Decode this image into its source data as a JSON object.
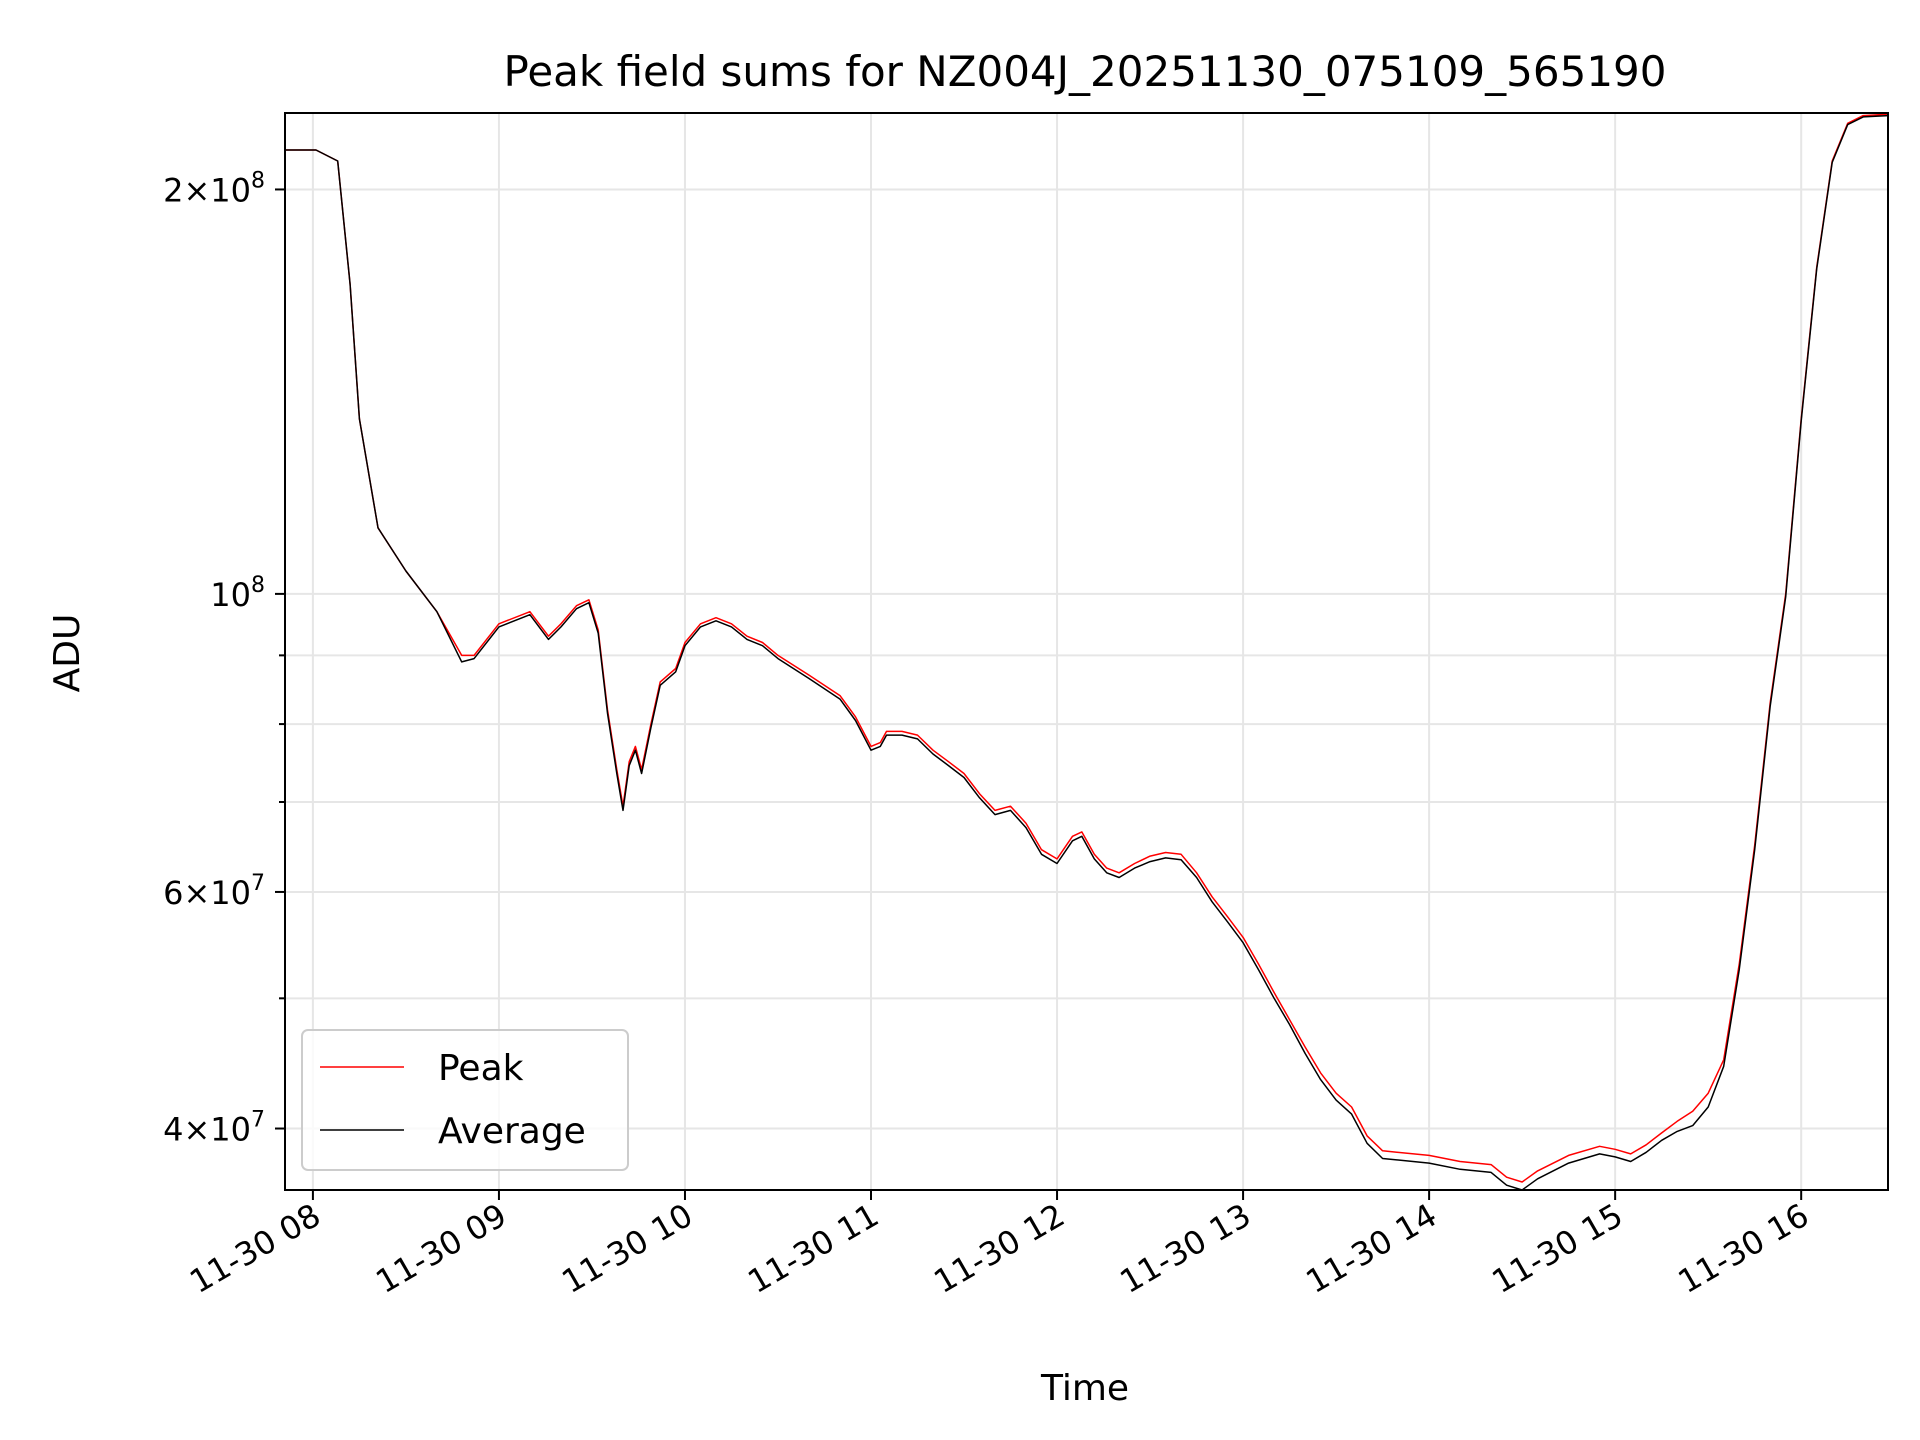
{
  "chart_data": {
    "type": "line",
    "title": "Peak field sums for NZ004J_20251130_075109_565190",
    "xlabel": "Time",
    "ylabel": "ADU",
    "yscale": "log",
    "grid": true,
    "legend_position": "lower-left",
    "xlim": [
      "2025-11-30 07:51",
      "2025-11-30 16:28"
    ],
    "ylim": [
      36000000,
      228000000
    ],
    "x_ticks": [
      {
        "value": "2025-11-30 08:00",
        "label": "11-30 08"
      },
      {
        "value": "2025-11-30 09:00",
        "label": "11-30 09"
      },
      {
        "value": "2025-11-30 10:00",
        "label": "11-30 10"
      },
      {
        "value": "2025-11-30 11:00",
        "label": "11-30 11"
      },
      {
        "value": "2025-11-30 12:00",
        "label": "11-30 12"
      },
      {
        "value": "2025-11-30 13:00",
        "label": "11-30 13"
      },
      {
        "value": "2025-11-30 14:00",
        "label": "11-30 14"
      },
      {
        "value": "2025-11-30 15:00",
        "label": "11-30 15"
      },
      {
        "value": "2025-11-30 16:00",
        "label": "11-30 16"
      }
    ],
    "y_major_ticks": [
      {
        "value": 40000000,
        "mant": "4",
        "exp": "7"
      },
      {
        "value": 60000000,
        "mant": "6",
        "exp": "7"
      },
      {
        "value": 100000000,
        "mant": "",
        "exp": "8"
      },
      {
        "value": 200000000,
        "mant": "2",
        "exp": "8"
      }
    ],
    "y_minor_ticks": [
      50000000,
      70000000,
      80000000,
      90000000
    ],
    "series": [
      {
        "name": "Peak",
        "color": "#ff0000",
        "points": [
          [
            "2025-11-30 07:51",
            214000000
          ],
          [
            "2025-11-30 08:01",
            214000000
          ],
          [
            "2025-11-30 08:08",
            210000000
          ],
          [
            "2025-11-30 08:12",
            170000000
          ],
          [
            "2025-11-30 08:15",
            135000000
          ],
          [
            "2025-11-30 08:21",
            112000000
          ],
          [
            "2025-11-30 08:30",
            104000000
          ],
          [
            "2025-11-30 08:40",
            97000000
          ],
          [
            "2025-11-30 08:48",
            90000000
          ],
          [
            "2025-11-30 08:52",
            90000000
          ],
          [
            "2025-11-30 09:00",
            95000000
          ],
          [
            "2025-11-30 09:10",
            97000000
          ],
          [
            "2025-11-30 09:16",
            93000000
          ],
          [
            "2025-11-30 09:20",
            95000000
          ],
          [
            "2025-11-30 09:25",
            98000000
          ],
          [
            "2025-11-30 09:29",
            99000000
          ],
          [
            "2025-11-30 09:32",
            94000000
          ],
          [
            "2025-11-30 09:35",
            82000000
          ],
          [
            "2025-11-30 09:38",
            74000000
          ],
          [
            "2025-11-30 09:40",
            69500000
          ],
          [
            "2025-11-30 09:42",
            75000000
          ],
          [
            "2025-11-30 09:44",
            77000000
          ],
          [
            "2025-11-30 09:46",
            74000000
          ],
          [
            "2025-11-30 09:49",
            80000000
          ],
          [
            "2025-11-30 09:52",
            86000000
          ],
          [
            "2025-11-30 09:57",
            88000000
          ],
          [
            "2025-11-30 10:00",
            92000000
          ],
          [
            "2025-11-30 10:05",
            95000000
          ],
          [
            "2025-11-30 10:10",
            96000000
          ],
          [
            "2025-11-30 10:15",
            95000000
          ],
          [
            "2025-11-30 10:20",
            93000000
          ],
          [
            "2025-11-30 10:25",
            92000000
          ],
          [
            "2025-11-30 10:30",
            90000000
          ],
          [
            "2025-11-30 10:40",
            87000000
          ],
          [
            "2025-11-30 10:50",
            84000000
          ],
          [
            "2025-11-30 10:55",
            81000000
          ],
          [
            "2025-11-30 11:00",
            77000000
          ],
          [
            "2025-11-30 11:03",
            77500000
          ],
          [
            "2025-11-30 11:05",
            79000000
          ],
          [
            "2025-11-30 11:10",
            79000000
          ],
          [
            "2025-11-30 11:15",
            78500000
          ],
          [
            "2025-11-30 11:20",
            76500000
          ],
          [
            "2025-11-30 11:25",
            75000000
          ],
          [
            "2025-11-30 11:30",
            73500000
          ],
          [
            "2025-11-30 11:35",
            71000000
          ],
          [
            "2025-11-30 11:40",
            69000000
          ],
          [
            "2025-11-30 11:45",
            69500000
          ],
          [
            "2025-11-30 11:50",
            67500000
          ],
          [
            "2025-11-30 11:55",
            64500000
          ],
          [
            "2025-11-30 12:00",
            63500000
          ],
          [
            "2025-11-30 12:05",
            66000000
          ],
          [
            "2025-11-30 12:08",
            66500000
          ],
          [
            "2025-11-30 12:12",
            64000000
          ],
          [
            "2025-11-30 12:16",
            62500000
          ],
          [
            "2025-11-30 12:20",
            62000000
          ],
          [
            "2025-11-30 12:25",
            63000000
          ],
          [
            "2025-11-30 12:30",
            63800000
          ],
          [
            "2025-11-30 12:35",
            64200000
          ],
          [
            "2025-11-30 12:40",
            64000000
          ],
          [
            "2025-11-30 12:45",
            62000000
          ],
          [
            "2025-11-30 12:50",
            59500000
          ],
          [
            "2025-11-30 12:55",
            57500000
          ],
          [
            "2025-11-30 13:00",
            55500000
          ],
          [
            "2025-11-30 13:05",
            53000000
          ],
          [
            "2025-11-30 13:10",
            50500000
          ],
          [
            "2025-11-30 13:15",
            48200000
          ],
          [
            "2025-11-30 13:20",
            46000000
          ],
          [
            "2025-11-30 13:25",
            44000000
          ],
          [
            "2025-11-30 13:30",
            42500000
          ],
          [
            "2025-11-30 13:35",
            41500000
          ],
          [
            "2025-11-30 13:40",
            39500000
          ],
          [
            "2025-11-30 13:45",
            38500000
          ],
          [
            "2025-11-30 14:00",
            38200000
          ],
          [
            "2025-11-30 14:10",
            37800000
          ],
          [
            "2025-11-30 14:20",
            37600000
          ],
          [
            "2025-11-30 14:25",
            36800000
          ],
          [
            "2025-11-30 14:30",
            36500000
          ],
          [
            "2025-11-30 14:35",
            37200000
          ],
          [
            "2025-11-30 14:45",
            38200000
          ],
          [
            "2025-11-30 14:55",
            38800000
          ],
          [
            "2025-11-30 15:00",
            38600000
          ],
          [
            "2025-11-30 15:05",
            38300000
          ],
          [
            "2025-11-30 15:10",
            38900000
          ],
          [
            "2025-11-30 15:15",
            39700000
          ],
          [
            "2025-11-30 15:20",
            40500000
          ],
          [
            "2025-11-30 15:25",
            41200000
          ],
          [
            "2025-11-30 15:30",
            42500000
          ],
          [
            "2025-11-30 15:35",
            45000000
          ],
          [
            "2025-11-30 15:40",
            53000000
          ],
          [
            "2025-11-30 15:45",
            65000000
          ],
          [
            "2025-11-30 15:50",
            83000000
          ],
          [
            "2025-11-30 15:55",
            100000000
          ],
          [
            "2025-11-30 16:00",
            135000000
          ],
          [
            "2025-11-30 16:05",
            175000000
          ],
          [
            "2025-11-30 16:10",
            210000000
          ],
          [
            "2025-11-30 16:15",
            224000000
          ],
          [
            "2025-11-30 16:20",
            227000000
          ],
          [
            "2025-11-30 16:28",
            227500000
          ]
        ]
      },
      {
        "name": "Average",
        "color": "#000000",
        "points": [
          [
            "2025-11-30 07:51",
            214000000
          ],
          [
            "2025-11-30 08:01",
            214000000
          ],
          [
            "2025-11-30 08:08",
            210000000
          ],
          [
            "2025-11-30 08:12",
            170000000
          ],
          [
            "2025-11-30 08:15",
            135000000
          ],
          [
            "2025-11-30 08:21",
            112000000
          ],
          [
            "2025-11-30 08:30",
            104000000
          ],
          [
            "2025-11-30 08:40",
            97000000
          ],
          [
            "2025-11-30 08:48",
            89000000
          ],
          [
            "2025-11-30 08:52",
            89500000
          ],
          [
            "2025-11-30 09:00",
            94500000
          ],
          [
            "2025-11-30 09:10",
            96500000
          ],
          [
            "2025-11-30 09:16",
            92500000
          ],
          [
            "2025-11-30 09:20",
            94500000
          ],
          [
            "2025-11-30 09:25",
            97500000
          ],
          [
            "2025-11-30 09:29",
            98500000
          ],
          [
            "2025-11-30 09:32",
            93500000
          ],
          [
            "2025-11-30 09:35",
            81500000
          ],
          [
            "2025-11-30 09:38",
            73500000
          ],
          [
            "2025-11-30 09:40",
            69000000
          ],
          [
            "2025-11-30 09:42",
            74500000
          ],
          [
            "2025-11-30 09:44",
            76500000
          ],
          [
            "2025-11-30 09:46",
            73500000
          ],
          [
            "2025-11-30 09:49",
            79500000
          ],
          [
            "2025-11-30 09:52",
            85500000
          ],
          [
            "2025-11-30 09:57",
            87500000
          ],
          [
            "2025-11-30 10:00",
            91500000
          ],
          [
            "2025-11-30 10:05",
            94500000
          ],
          [
            "2025-11-30 10:10",
            95500000
          ],
          [
            "2025-11-30 10:15",
            94500000
          ],
          [
            "2025-11-30 10:20",
            92500000
          ],
          [
            "2025-11-30 10:25",
            91500000
          ],
          [
            "2025-11-30 10:30",
            89500000
          ],
          [
            "2025-11-30 10:40",
            86500000
          ],
          [
            "2025-11-30 10:50",
            83500000
          ],
          [
            "2025-11-30 10:55",
            80500000
          ],
          [
            "2025-11-30 11:00",
            76500000
          ],
          [
            "2025-11-30 11:03",
            77000000
          ],
          [
            "2025-11-30 11:05",
            78500000
          ],
          [
            "2025-11-30 11:10",
            78500000
          ],
          [
            "2025-11-30 11:15",
            78000000
          ],
          [
            "2025-11-30 11:20",
            76000000
          ],
          [
            "2025-11-30 11:25",
            74500000
          ],
          [
            "2025-11-30 11:30",
            73000000
          ],
          [
            "2025-11-30 11:35",
            70500000
          ],
          [
            "2025-11-30 11:40",
            68500000
          ],
          [
            "2025-11-30 11:45",
            69000000
          ],
          [
            "2025-11-30 11:50",
            67000000
          ],
          [
            "2025-11-30 11:55",
            64000000
          ],
          [
            "2025-11-30 12:00",
            63000000
          ],
          [
            "2025-11-30 12:05",
            65500000
          ],
          [
            "2025-11-30 12:08",
            66000000
          ],
          [
            "2025-11-30 12:12",
            63500000
          ],
          [
            "2025-11-30 12:16",
            62000000
          ],
          [
            "2025-11-30 12:20",
            61500000
          ],
          [
            "2025-11-30 12:25",
            62500000
          ],
          [
            "2025-11-30 12:30",
            63200000
          ],
          [
            "2025-11-30 12:35",
            63600000
          ],
          [
            "2025-11-30 12:40",
            63400000
          ],
          [
            "2025-11-30 12:45",
            61500000
          ],
          [
            "2025-11-30 12:50",
            59000000
          ],
          [
            "2025-11-30 12:55",
            57000000
          ],
          [
            "2025-11-30 13:00",
            55000000
          ],
          [
            "2025-11-30 13:05",
            52500000
          ],
          [
            "2025-11-30 13:10",
            50000000
          ],
          [
            "2025-11-30 13:15",
            47800000
          ],
          [
            "2025-11-30 13:20",
            45500000
          ],
          [
            "2025-11-30 13:25",
            43500000
          ],
          [
            "2025-11-30 13:30",
            42000000
          ],
          [
            "2025-11-30 13:35",
            41000000
          ],
          [
            "2025-11-30 13:40",
            39000000
          ],
          [
            "2025-11-30 13:45",
            38000000
          ],
          [
            "2025-11-30 14:00",
            37700000
          ],
          [
            "2025-11-30 14:10",
            37300000
          ],
          [
            "2025-11-30 14:20",
            37100000
          ],
          [
            "2025-11-30 14:25",
            36300000
          ],
          [
            "2025-11-30 14:30",
            36000000
          ],
          [
            "2025-11-30 14:35",
            36700000
          ],
          [
            "2025-11-30 14:45",
            37700000
          ],
          [
            "2025-11-30 14:55",
            38300000
          ],
          [
            "2025-11-30 15:00",
            38100000
          ],
          [
            "2025-11-30 15:05",
            37800000
          ],
          [
            "2025-11-30 15:10",
            38400000
          ],
          [
            "2025-11-30 15:15",
            39200000
          ],
          [
            "2025-11-30 15:20",
            39800000
          ],
          [
            "2025-11-30 15:25",
            40200000
          ],
          [
            "2025-11-30 15:30",
            41500000
          ],
          [
            "2025-11-30 15:35",
            44500000
          ],
          [
            "2025-11-30 15:40",
            52500000
          ],
          [
            "2025-11-30 15:45",
            64500000
          ],
          [
            "2025-11-30 15:50",
            82500000
          ],
          [
            "2025-11-30 15:55",
            99500000
          ],
          [
            "2025-11-30 16:00",
            134500000
          ],
          [
            "2025-11-30 16:05",
            174500000
          ],
          [
            "2025-11-30 16:10",
            209500000
          ],
          [
            "2025-11-30 16:15",
            223500000
          ],
          [
            "2025-11-30 16:20",
            226500000
          ],
          [
            "2025-11-30 16:28",
            227000000
          ]
        ]
      }
    ]
  }
}
